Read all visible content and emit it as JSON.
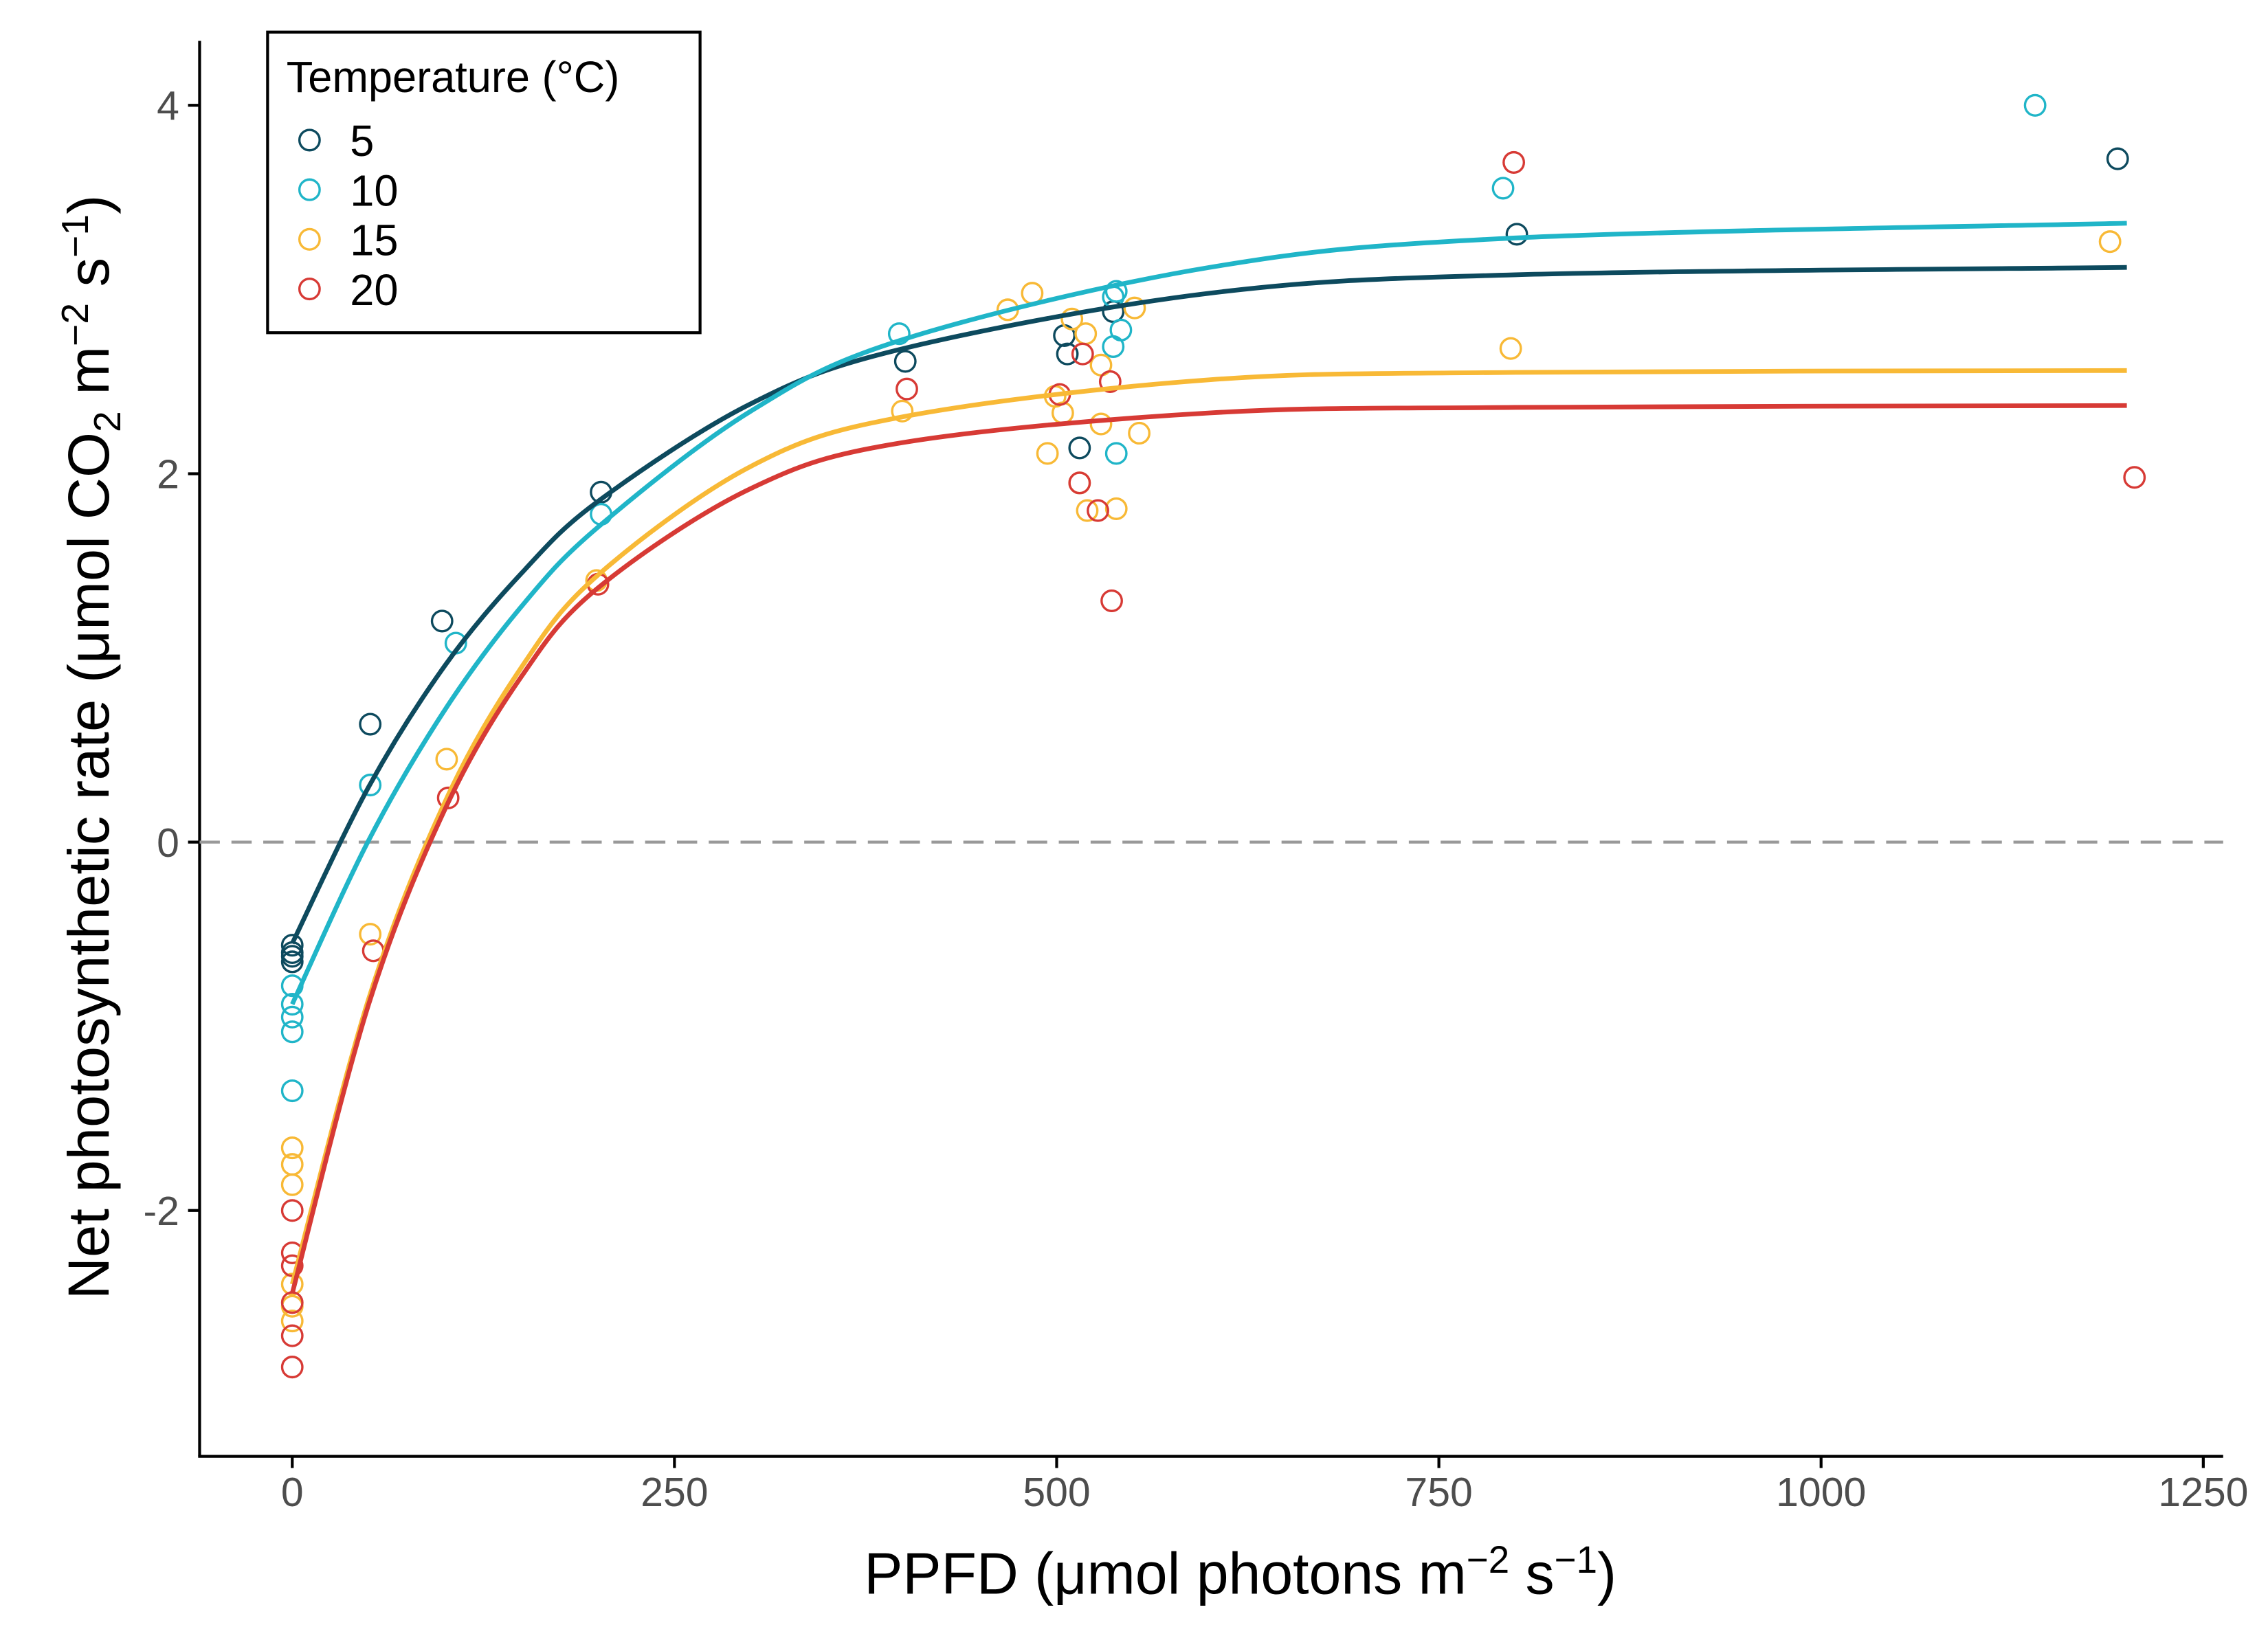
{
  "chart_data": {
    "type": "scatter",
    "x_label_parts": [
      "PPFD (μmol photons m",
      "−2",
      " s",
      "−1",
      ")"
    ],
    "y_label_parts": [
      "Net photosynthetic rate (μmol CO",
      "2",
      " m",
      "−2",
      " s",
      "−1",
      ")"
    ],
    "legend_title": "Temperature (°C)",
    "legend_position": "top-left",
    "xlim": [
      -60.6,
      1263
    ],
    "ylim": [
      -3.335,
      4.35
    ],
    "xticks": [
      0,
      250,
      500,
      750,
      1000,
      1250
    ],
    "yticks": [
      -2,
      0,
      2,
      4
    ],
    "hline": 0,
    "series": [
      {
        "name": "5",
        "color": "#0d4a5e",
        "x": [
          0,
          0,
          0,
          0,
          51,
          98,
          202,
          401,
          505,
          507,
          515,
          537,
          801,
          1194
        ],
        "y": [
          -0.56,
          -0.6,
          -0.62,
          -0.65,
          0.64,
          1.2,
          1.9,
          2.61,
          2.75,
          2.65,
          2.14,
          2.88,
          3.3,
          3.71
        ],
        "fit_x": [
          0,
          50,
          100,
          150,
          200,
          300,
          400,
          600,
          800,
          1200
        ],
        "fit_y": [
          -0.55,
          0.3,
          0.96,
          1.46,
          1.85,
          2.38,
          2.68,
          2.98,
          3.08,
          3.12
        ]
      },
      {
        "name": "10",
        "color": "#20b5c8",
        "x": [
          0,
          0,
          0,
          0,
          0,
          51,
          107,
          202,
          397,
          537,
          539,
          542,
          537,
          539,
          792,
          1140
        ],
        "y": [
          -0.78,
          -0.88,
          -0.95,
          -1.03,
          -1.35,
          0.31,
          1.08,
          1.78,
          2.76,
          2.96,
          2.99,
          2.78,
          2.69,
          2.11,
          3.55,
          4.0
        ],
        "fit_x": [
          0,
          50,
          100,
          150,
          200,
          300,
          400,
          600,
          800,
          1200
        ],
        "fit_y": [
          -0.88,
          0.01,
          0.72,
          1.28,
          1.71,
          2.34,
          2.73,
          3.12,
          3.28,
          3.36
        ]
      },
      {
        "name": "15",
        "color": "#f8b936",
        "x": [
          0,
          0,
          0,
          0,
          0,
          0,
          51,
          101,
          199,
          399,
          468,
          484,
          494,
          499,
          504,
          510,
          519,
          515,
          520,
          529,
          529,
          539,
          551,
          554,
          797,
          1189
        ],
        "y": [
          -1.66,
          -1.75,
          -1.86,
          -2.4,
          -2.52,
          -2.6,
          -0.5,
          0.45,
          1.42,
          2.34,
          2.89,
          2.98,
          2.11,
          2.42,
          2.33,
          2.84,
          2.76,
          1.95,
          1.8,
          2.59,
          2.27,
          1.81,
          2.9,
          2.22,
          2.68,
          3.26
        ],
        "fit_x": [
          0,
          50,
          100,
          150,
          200,
          300,
          400,
          600,
          800,
          1200
        ],
        "fit_y": [
          -2.4,
          -0.85,
          0.22,
          0.95,
          1.45,
          2.04,
          2.31,
          2.51,
          2.55,
          2.56
        ]
      },
      {
        "name": "20",
        "color": "#d73a35",
        "x": [
          0,
          0,
          0,
          0,
          0,
          0,
          53,
          102,
          200,
          402,
          502,
          517,
          515,
          527,
          535,
          536,
          799,
          1205
        ],
        "y": [
          -2.0,
          -2.23,
          -2.3,
          -2.5,
          -2.68,
          -2.85,
          -0.59,
          0.24,
          1.4,
          2.46,
          2.43,
          2.65,
          1.95,
          1.8,
          2.5,
          1.31,
          3.69,
          1.98
        ],
        "fit_x": [
          0,
          50,
          100,
          150,
          200,
          300,
          400,
          600,
          800,
          1200
        ],
        "fit_y": [
          -2.45,
          -0.88,
          0.18,
          0.9,
          1.38,
          1.92,
          2.17,
          2.33,
          2.36,
          2.37
        ]
      }
    ]
  }
}
